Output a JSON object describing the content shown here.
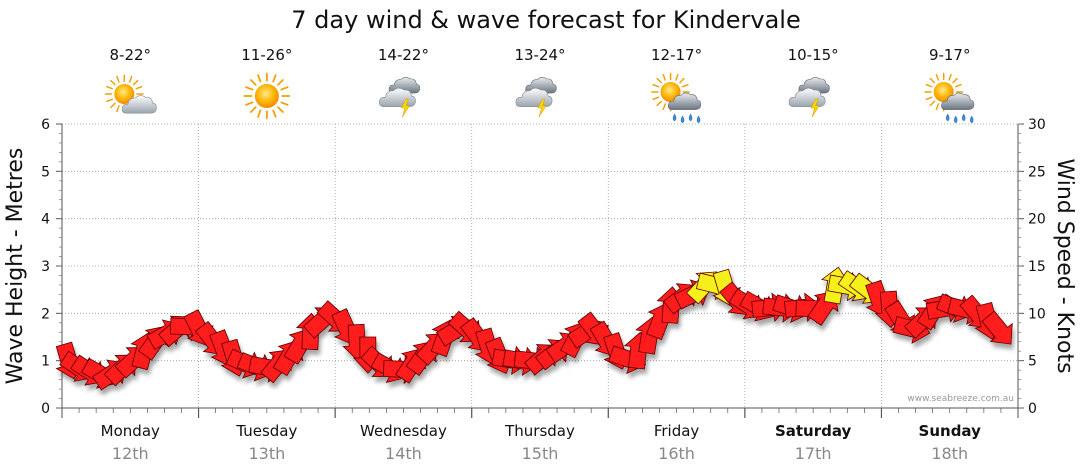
{
  "chart_data": {
    "type": "line",
    "title": "7 day wind & wave forecast for Kindervale",
    "ylabel_left": "Wave Height - Metres",
    "ylabel_right": "Wind Speed - Knots",
    "ylim_left": [
      0,
      6
    ],
    "ylim_right": [
      0,
      30
    ],
    "yticks_left": [
      "0",
      "1",
      "2",
      "3",
      "4",
      "5",
      "6"
    ],
    "yticks_right": [
      "0",
      "5",
      "10",
      "15",
      "20",
      "25",
      "30"
    ],
    "grid": true,
    "credit": "www.seabreeze.com.au",
    "days": [
      {
        "day": "Monday",
        "date": "12th",
        "temp": "8-22°",
        "weather": "partly-cloudy-icon",
        "bold": false
      },
      {
        "day": "Tuesday",
        "date": "13th",
        "temp": "11-26°",
        "weather": "sunny-icon",
        "bold": false
      },
      {
        "day": "Wednesday",
        "date": "14th",
        "temp": "14-22°",
        "weather": "storm-icon",
        "bold": false
      },
      {
        "day": "Thursday",
        "date": "15th",
        "temp": "13-24°",
        "weather": "storm-icon",
        "bold": false
      },
      {
        "day": "Friday",
        "date": "16th",
        "temp": "12-17°",
        "weather": "sun-rain-icon",
        "bold": false
      },
      {
        "day": "Saturday",
        "date": "17th",
        "temp": "10-15°",
        "weather": "storm-icon",
        "bold": true
      },
      {
        "day": "Sunday",
        "date": "18th",
        "temp": "9-17°",
        "weather": "sun-rain-icon",
        "bold": true
      }
    ],
    "series": [
      {
        "name": "Wind Speed (Knots)",
        "axis": "right",
        "x_unit": "days from Monday 00:00",
        "points": [
          [
            0.05,
            5.0
          ],
          [
            0.12,
            4.3
          ],
          [
            0.2,
            3.9
          ],
          [
            0.28,
            3.6
          ],
          [
            0.36,
            3.6
          ],
          [
            0.44,
            4.2
          ],
          [
            0.52,
            5.0
          ],
          [
            0.6,
            6.0
          ],
          [
            0.68,
            7.0
          ],
          [
            0.76,
            7.8
          ],
          [
            0.84,
            8.3
          ],
          [
            0.92,
            8.6
          ],
          [
            1.0,
            8.4
          ],
          [
            1.1,
            7.2
          ],
          [
            1.18,
            6.3
          ],
          [
            1.26,
            5.3
          ],
          [
            1.34,
            4.7
          ],
          [
            1.42,
            4.4
          ],
          [
            1.5,
            4.3
          ],
          [
            1.58,
            4.6
          ],
          [
            1.66,
            5.4
          ],
          [
            1.74,
            6.6
          ],
          [
            1.82,
            8.0
          ],
          [
            1.9,
            9.2
          ],
          [
            2.0,
            9.5
          ],
          [
            2.08,
            8.5
          ],
          [
            2.16,
            7.0
          ],
          [
            2.24,
            5.7
          ],
          [
            2.32,
            4.7
          ],
          [
            2.4,
            4.2
          ],
          [
            2.48,
            4.1
          ],
          [
            2.56,
            4.6
          ],
          [
            2.64,
            5.4
          ],
          [
            2.72,
            6.4
          ],
          [
            2.8,
            7.4
          ],
          [
            2.88,
            8.2
          ],
          [
            2.96,
            8.4
          ],
          [
            3.04,
            7.6
          ],
          [
            3.12,
            6.5
          ],
          [
            3.2,
            5.5
          ],
          [
            3.28,
            5.1
          ],
          [
            3.36,
            5.0
          ],
          [
            3.44,
            5.0
          ],
          [
            3.52,
            5.3
          ],
          [
            3.6,
            5.8
          ],
          [
            3.68,
            6.5
          ],
          [
            3.76,
            7.3
          ],
          [
            3.84,
            8.0
          ],
          [
            3.9,
            8.2
          ],
          [
            3.98,
            7.2
          ],
          [
            4.06,
            6.0
          ],
          [
            4.14,
            5.2
          ],
          [
            4.22,
            6.0
          ],
          [
            4.3,
            7.6
          ],
          [
            4.38,
            9.2
          ],
          [
            4.46,
            10.8
          ],
          [
            4.54,
            11.7
          ],
          [
            4.62,
            12.0
          ],
          [
            4.7,
            12.9
          ],
          [
            4.78,
            13.0
          ],
          [
            4.86,
            12.7
          ],
          [
            4.94,
            11.4
          ],
          [
            5.02,
            10.9
          ],
          [
            5.1,
            10.7
          ],
          [
            5.18,
            10.6
          ],
          [
            5.26,
            10.6
          ],
          [
            5.34,
            10.6
          ],
          [
            5.42,
            10.6
          ],
          [
            5.5,
            10.5
          ],
          [
            5.58,
            10.7
          ],
          [
            5.66,
            12.9
          ],
          [
            5.74,
            12.9
          ],
          [
            5.82,
            12.8
          ],
          [
            5.9,
            12.5
          ],
          [
            5.98,
            11.5
          ],
          [
            6.06,
            10.5
          ],
          [
            6.14,
            9.4
          ],
          [
            6.22,
            8.4
          ],
          [
            6.3,
            9.2
          ],
          [
            6.38,
            10.2
          ],
          [
            6.46,
            10.5
          ],
          [
            6.54,
            10.6
          ],
          [
            6.62,
            10.4
          ],
          [
            6.7,
            10.0
          ],
          [
            6.78,
            9.2
          ],
          [
            6.86,
            8.3
          ]
        ]
      }
    ],
    "wind_over_12_color": "#f5ef1a",
    "wind_color": "#ff1a1a"
  }
}
